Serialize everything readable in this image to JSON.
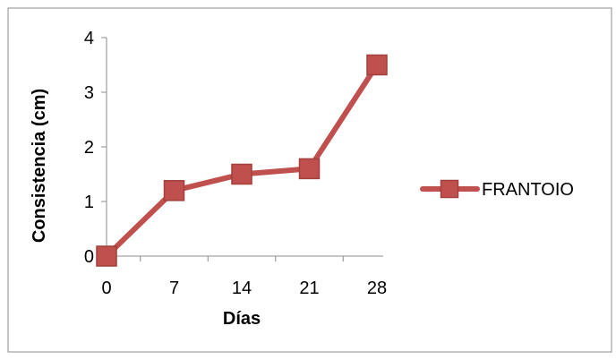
{
  "chart_data": {
    "type": "line",
    "xlabel": "Días",
    "ylabel": "Consistencia (cm)",
    "x": [
      0,
      7,
      14,
      21,
      28
    ],
    "x_ticks": [
      "0",
      "7",
      "14",
      "21",
      "28"
    ],
    "y_ticks": [
      "0",
      "1",
      "2",
      "3",
      "4"
    ],
    "ylim": [
      0,
      4
    ],
    "grid": false,
    "legend_position": "right",
    "series": [
      {
        "name": "FRANTOIO",
        "values": [
          0,
          1.2,
          1.5,
          1.6,
          3.5
        ],
        "color": "#c0504d",
        "marker_color": "#c0504d",
        "line_color": "#c0504d"
      }
    ]
  }
}
